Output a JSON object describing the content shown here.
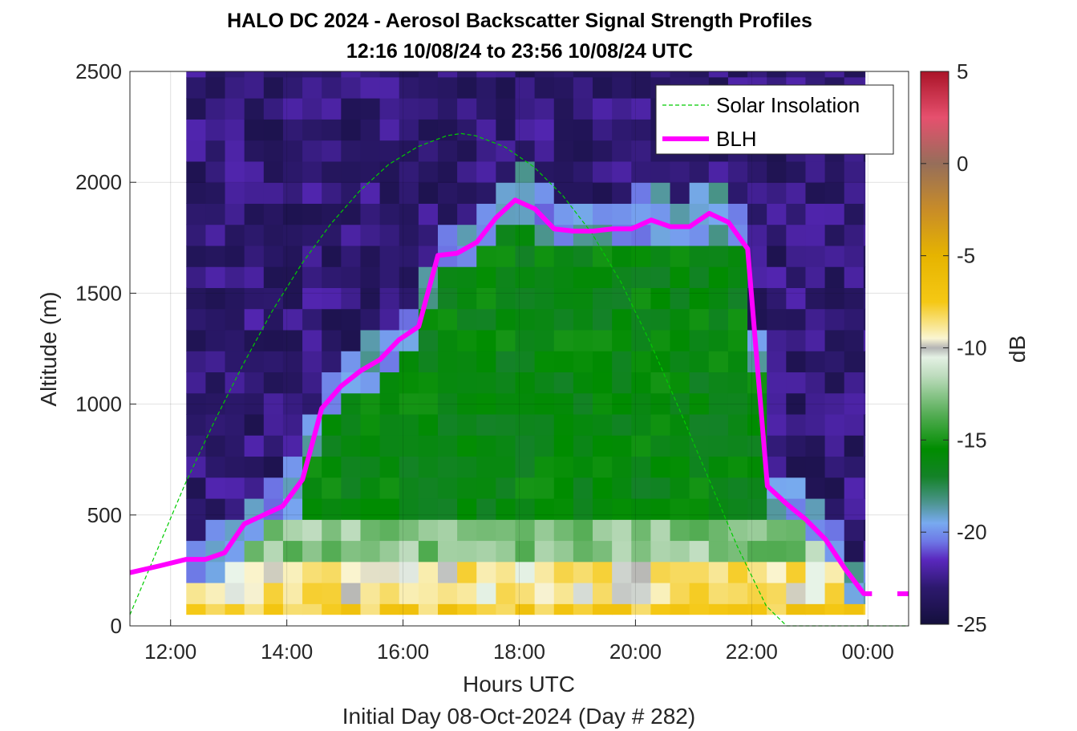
{
  "chart_data": {
    "type": "heatmap",
    "title": [
      "HALO DC 2024 - Aerosol Backscatter Signal Strength Profiles",
      "12:16 10/08/24 to 23:56 10/08/24  UTC"
    ],
    "xlabel": "Hours UTC",
    "xlabel2": "Initial Day 08-Oct-2024 (Day # 282)",
    "ylabel": "Altitude (m)",
    "x_ticks": [
      12,
      14,
      16,
      18,
      20,
      22,
      24
    ],
    "x_tick_labels": [
      "12:00",
      "14:00",
      "16:00",
      "18:00",
      "20:00",
      "22:00",
      "00:00"
    ],
    "xlim": [
      11.3,
      24.7
    ],
    "y_ticks": [
      0,
      500,
      1000,
      1500,
      2000,
      2500
    ],
    "y_tick_labels": [
      "0",
      "500",
      "1000",
      "1500",
      "2000",
      "2500"
    ],
    "ylim": [
      0,
      2500
    ],
    "grid": true,
    "legend_placement": "top-right",
    "colorbar": {
      "label": "dB",
      "range": [
        -25,
        5
      ],
      "ticks": [
        5,
        0,
        -5,
        -10,
        -15,
        -20,
        -25
      ],
      "tick_labels": [
        "5",
        "0",
        "-5",
        "-10",
        "-15",
        "-20",
        "-25"
      ]
    },
    "heatmap": {
      "time_start": 12.27,
      "time_end": 23.93,
      "time_step": 0.333,
      "alt_bin_bottom": 100,
      "alt_bin_top": 2500,
      "bottom_bin_value_db": -7.5,
      "regime_description_db": {
        "free_troposphere": -23,
        "boundary_layer_top_region": -19,
        "mixed_layer": -16,
        "near_surface": -11
      }
    },
    "series": [
      {
        "name": "Solar Insolation",
        "style": "dashed",
        "color": "#00cc00",
        "x": [
          11.3,
          11.75,
          12.25,
          12.75,
          13.25,
          13.75,
          14.25,
          14.75,
          15.25,
          15.75,
          16.25,
          16.75,
          17.0,
          17.25,
          17.75,
          18.25,
          18.75,
          19.25,
          19.75,
          20.25,
          20.75,
          21.25,
          21.75,
          22.25,
          22.6,
          23.0,
          24.7
        ],
        "y": [
          50,
          330,
          640,
          920,
          1180,
          1420,
          1630,
          1810,
          1960,
          2080,
          2160,
          2210,
          2220,
          2210,
          2160,
          2070,
          1940,
          1770,
          1550,
          1280,
          980,
          670,
          360,
          90,
          0,
          0,
          0
        ]
      },
      {
        "name": "BLH",
        "style": "solid",
        "color": "#ff00ff",
        "x": [
          11.3,
          11.8,
          12.27,
          12.6,
          12.93,
          13.27,
          13.6,
          13.93,
          14.27,
          14.6,
          14.93,
          15.27,
          15.6,
          15.93,
          16.27,
          16.6,
          16.93,
          17.27,
          17.6,
          17.93,
          18.27,
          18.6,
          18.93,
          19.27,
          19.6,
          19.93,
          20.27,
          20.6,
          20.93,
          21.27,
          21.6,
          21.93,
          22.27,
          22.6,
          22.93,
          23.27,
          23.6,
          23.93,
          24.07,
          24.7
        ],
        "y": [
          240,
          270,
          300,
          300,
          330,
          460,
          500,
          540,
          660,
          980,
          1080,
          1150,
          1200,
          1290,
          1350,
          1670,
          1680,
          1730,
          1840,
          1920,
          1880,
          1790,
          1780,
          1780,
          1790,
          1790,
          1830,
          1800,
          1800,
          1860,
          1820,
          1700,
          630,
          550,
          480,
          390,
          260,
          145,
          145,
          145
        ],
        "break_after_x": 24.07
      }
    ]
  }
}
